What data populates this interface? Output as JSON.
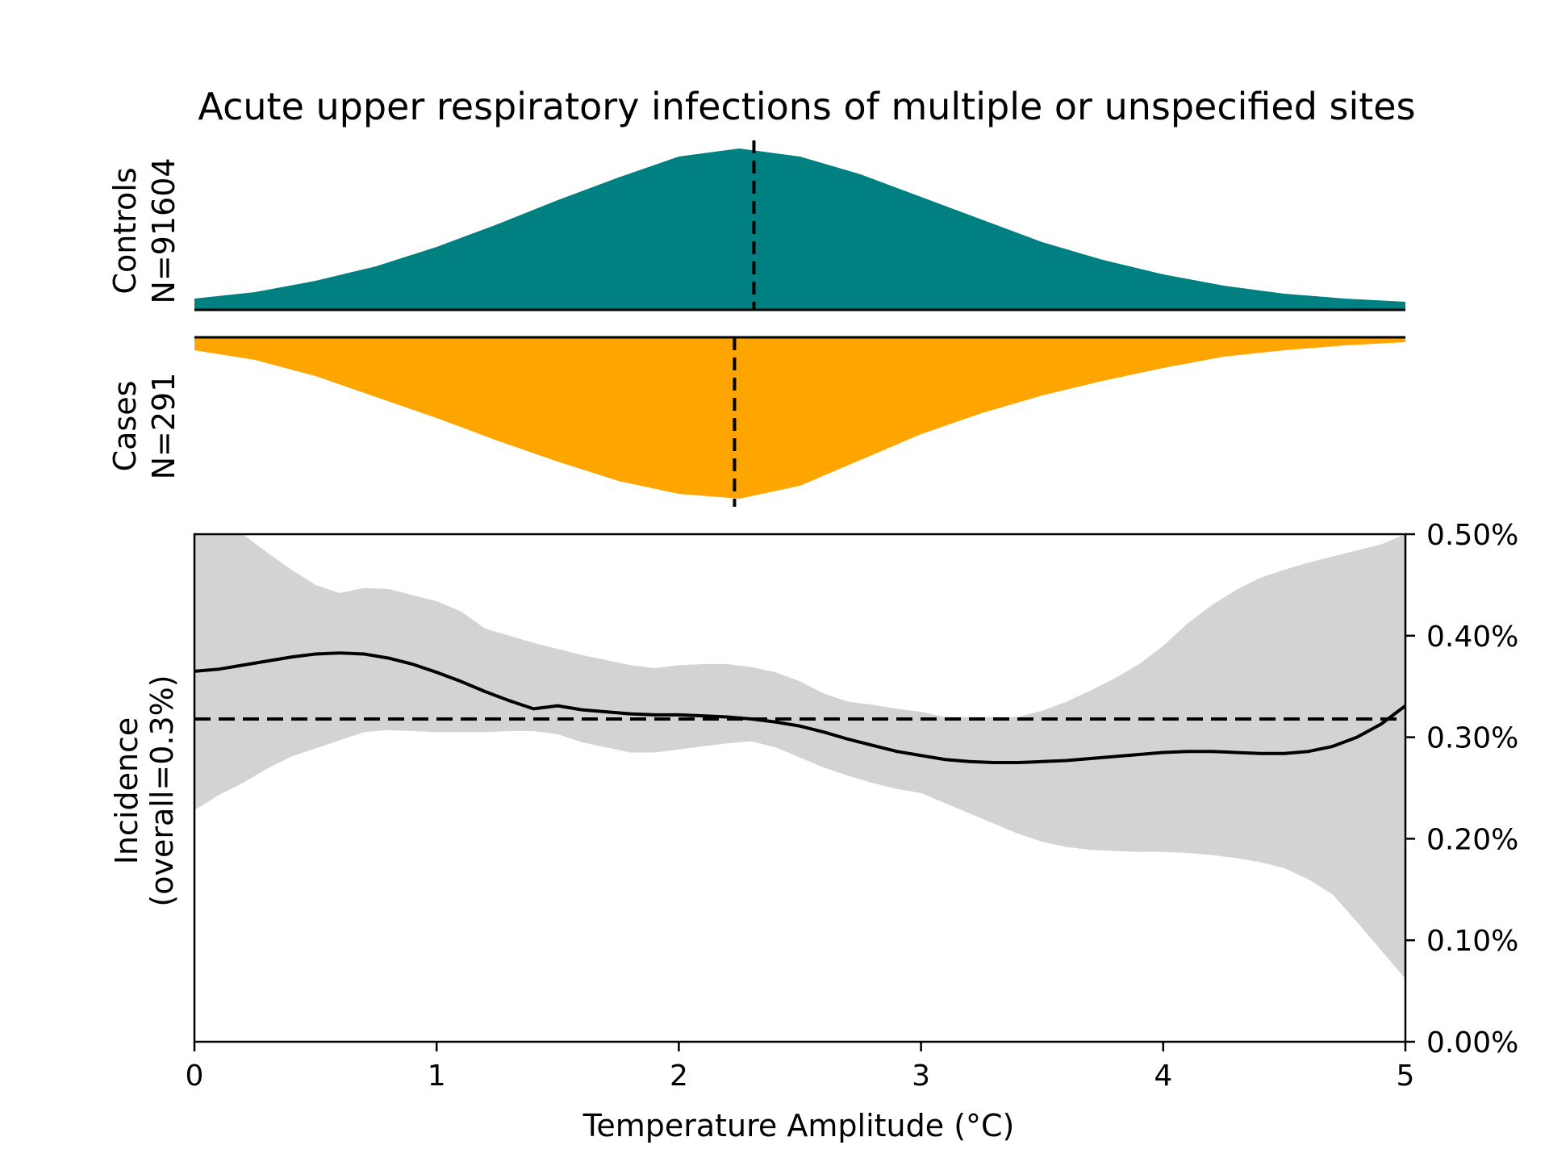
{
  "colors": {
    "controls": "#008080",
    "cases": "#FFA500",
    "band": "#D3D3D3",
    "line": "#000000"
  },
  "chart_data": {
    "type": "area",
    "title": "Acute upper respiratory infections of multiple or unspecified sites",
    "xlabel": "Temperature Amplitude (°C)",
    "xlim": [
      0,
      5
    ],
    "x_ticks": [
      "0",
      "1",
      "2",
      "3",
      "4",
      "5"
    ],
    "controls": {
      "label_line1": "Controls",
      "label_line2": "N=91604",
      "median": 2.31,
      "x": [
        0,
        0.25,
        0.5,
        0.75,
        1,
        1.25,
        1.5,
        1.75,
        2,
        2.25,
        2.5,
        2.75,
        3,
        3.25,
        3.5,
        3.75,
        4,
        4.25,
        4.5,
        4.75,
        5
      ],
      "density": [
        0.07,
        0.11,
        0.18,
        0.27,
        0.39,
        0.53,
        0.68,
        0.82,
        0.95,
        1.0,
        0.95,
        0.84,
        0.7,
        0.56,
        0.42,
        0.31,
        0.22,
        0.15,
        0.1,
        0.07,
        0.05
      ]
    },
    "cases": {
      "label_line1": "Cases",
      "label_line2": "N=291",
      "median": 2.23,
      "x": [
        0,
        0.25,
        0.5,
        0.75,
        1,
        1.25,
        1.5,
        1.75,
        2,
        2.25,
        2.5,
        2.75,
        3,
        3.25,
        3.5,
        3.75,
        4,
        4.25,
        4.5,
        4.75,
        5
      ],
      "density": [
        0.08,
        0.14,
        0.24,
        0.37,
        0.5,
        0.64,
        0.77,
        0.89,
        0.97,
        1.0,
        0.92,
        0.76,
        0.6,
        0.47,
        0.36,
        0.27,
        0.19,
        0.12,
        0.08,
        0.05,
        0.03
      ]
    },
    "incidence": {
      "ylabel_line1": "Incidence",
      "ylabel_line2": "(overall=0.3%)",
      "ylim": [
        0,
        0.5
      ],
      "y_ticks": [
        "0.00%",
        "0.10%",
        "0.20%",
        "0.30%",
        "0.40%",
        "0.50%"
      ],
      "overall": 0.318,
      "x": [
        0,
        0.1,
        0.2,
        0.3,
        0.4,
        0.5,
        0.6,
        0.7,
        0.8,
        0.9,
        1.0,
        1.1,
        1.2,
        1.3,
        1.4,
        1.5,
        1.6,
        1.7,
        1.8,
        1.9,
        2.0,
        2.1,
        2.2,
        2.3,
        2.4,
        2.5,
        2.6,
        2.7,
        2.8,
        2.9,
        3.0,
        3.1,
        3.2,
        3.3,
        3.4,
        3.5,
        3.6,
        3.7,
        3.8,
        3.9,
        4.0,
        4.1,
        4.2,
        4.3,
        4.4,
        4.5,
        4.6,
        4.7,
        4.8,
        4.9,
        5.0
      ],
      "estimate": [
        0.365,
        0.367,
        0.371,
        0.375,
        0.379,
        0.382,
        0.383,
        0.382,
        0.378,
        0.372,
        0.364,
        0.355,
        0.345,
        0.336,
        0.328,
        0.331,
        0.327,
        0.325,
        0.323,
        0.322,
        0.322,
        0.321,
        0.32,
        0.318,
        0.315,
        0.311,
        0.305,
        0.298,
        0.292,
        0.286,
        0.282,
        0.278,
        0.276,
        0.275,
        0.275,
        0.276,
        0.277,
        0.279,
        0.281,
        0.283,
        0.285,
        0.286,
        0.286,
        0.285,
        0.284,
        0.284,
        0.286,
        0.291,
        0.3,
        0.313,
        0.331
      ],
      "upper": [
        0.56,
        0.55,
        0.5,
        0.482,
        0.465,
        0.45,
        0.442,
        0.447,
        0.446,
        0.44,
        0.434,
        0.424,
        0.407,
        0.4,
        0.393,
        0.387,
        0.381,
        0.376,
        0.371,
        0.368,
        0.371,
        0.372,
        0.372,
        0.369,
        0.364,
        0.355,
        0.343,
        0.335,
        0.332,
        0.328,
        0.325,
        0.32,
        0.32,
        0.32,
        0.32,
        0.326,
        0.335,
        0.346,
        0.358,
        0.372,
        0.39,
        0.412,
        0.43,
        0.445,
        0.457,
        0.465,
        0.472,
        0.478,
        0.484,
        0.49,
        0.508
      ],
      "lower": [
        0.228,
        0.243,
        0.255,
        0.269,
        0.281,
        0.289,
        0.297,
        0.305,
        0.307,
        0.306,
        0.305,
        0.305,
        0.305,
        0.306,
        0.306,
        0.303,
        0.295,
        0.29,
        0.285,
        0.285,
        0.288,
        0.291,
        0.294,
        0.296,
        0.29,
        0.28,
        0.27,
        0.262,
        0.255,
        0.249,
        0.245,
        0.235,
        0.225,
        0.215,
        0.205,
        0.197,
        0.192,
        0.189,
        0.188,
        0.187,
        0.187,
        0.186,
        0.184,
        0.181,
        0.177,
        0.171,
        0.16,
        0.145,
        0.118,
        0.09,
        0.062
      ]
    }
  }
}
